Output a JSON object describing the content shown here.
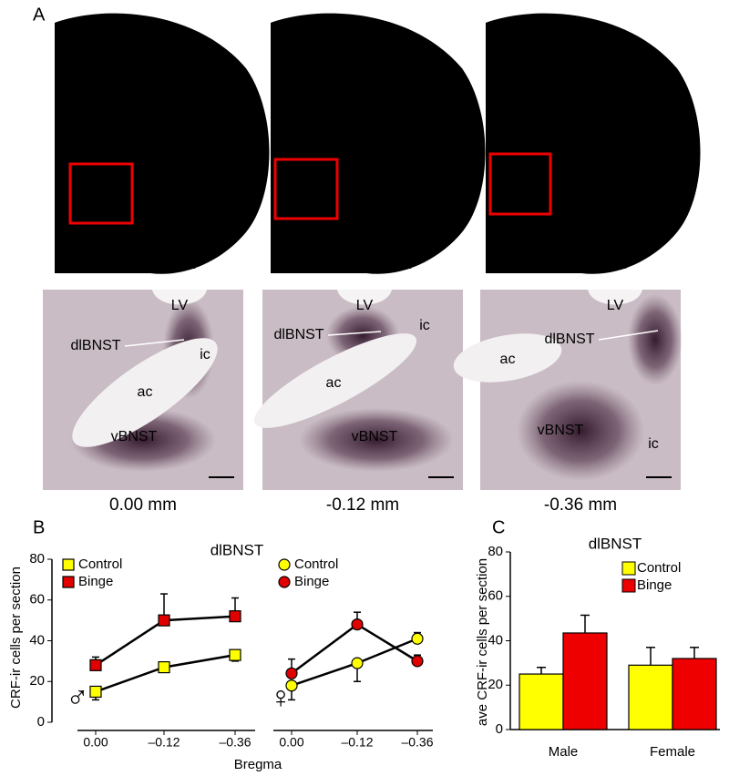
{
  "panel_labels": [
    "A",
    "B",
    "C"
  ],
  "sections": [
    {
      "caption": "0.00 mm",
      "regions": [
        "LV",
        "dlBNST",
        "ic",
        "ac",
        "vBNST"
      ]
    },
    {
      "caption": "-0.12 mm",
      "regions": [
        "LV",
        "dlBNST",
        "ic",
        "ac",
        "vBNST"
      ]
    },
    {
      "caption": "-0.36 mm",
      "regions": [
        "LV",
        "dlBNST",
        "ac",
        "vBNST",
        "ic"
      ]
    }
  ],
  "chart_data": [
    {
      "type": "line",
      "title": "dlBNST",
      "y_label": "CRF-ir cells per section",
      "x_label": "Bregma",
      "ylim": [
        0,
        80
      ],
      "yticks": [
        0,
        20,
        40,
        60,
        80
      ],
      "groups": [
        {
          "symbol": "♂",
          "categories": [
            "0.00",
            "–0.12",
            "–0.36"
          ],
          "series": [
            {
              "name": "Control",
              "color": "#ffff00",
              "marker": "square",
              "values": [
                15,
                27,
                33
              ],
              "errors": [
                4,
                2,
                3
              ]
            },
            {
              "name": "Binge",
              "color": "#e00000",
              "marker": "square",
              "values": [
                28,
                50,
                52
              ],
              "errors": [
                4,
                13,
                9
              ]
            }
          ]
        },
        {
          "symbol": "♀",
          "categories": [
            "0.00",
            "–0.12",
            "–0.36"
          ],
          "series": [
            {
              "name": "Control",
              "color": "#ffff00",
              "marker": "circle",
              "values": [
                18,
                29,
                41
              ],
              "errors": [
                7,
                9,
                3
              ]
            },
            {
              "name": "Binge",
              "color": "#e00000",
              "marker": "circle",
              "values": [
                24,
                48,
                30
              ],
              "errors": [
                7,
                6,
                3
              ]
            }
          ]
        }
      ]
    },
    {
      "type": "bar",
      "title": "dlBNST",
      "y_label": "ave CRF-ir cells per section",
      "ylim": [
        0,
        80
      ],
      "yticks": [
        0,
        20,
        40,
        60,
        80
      ],
      "categories": [
        "Male",
        "Female"
      ],
      "series": [
        {
          "name": "Control",
          "color": "#ffff00",
          "values": [
            25,
            29
          ],
          "errors": [
            3,
            8
          ]
        },
        {
          "name": "Binge",
          "color": "#ee0000",
          "values": [
            43.5,
            32
          ],
          "errors": [
            8,
            5
          ]
        }
      ]
    }
  ]
}
